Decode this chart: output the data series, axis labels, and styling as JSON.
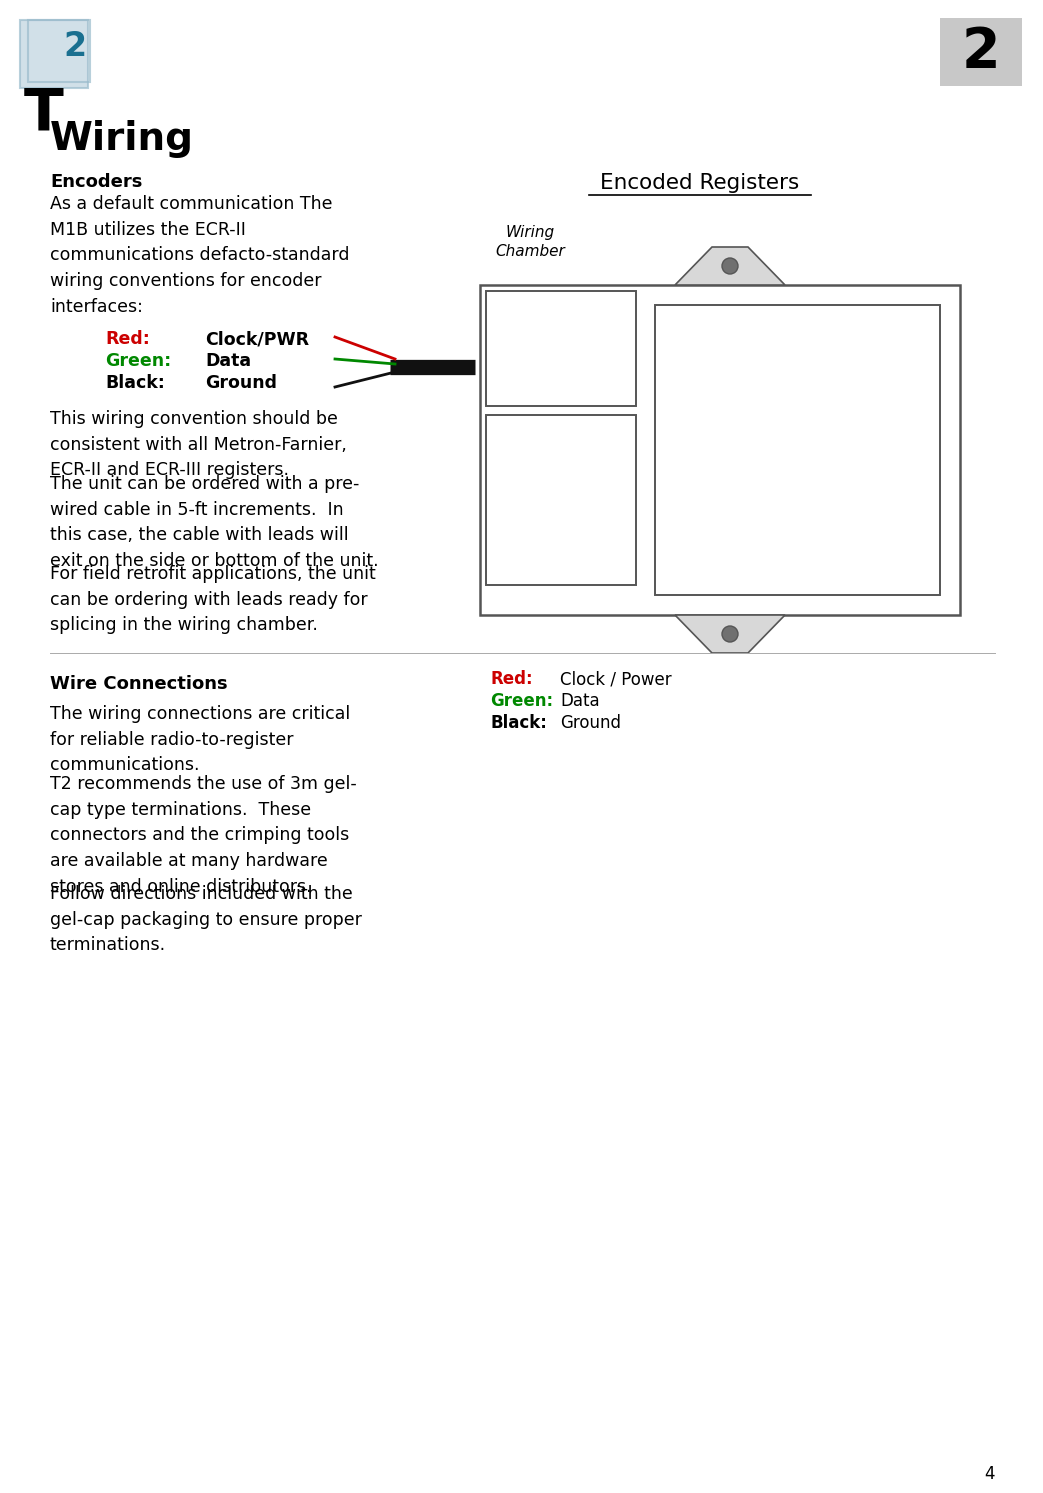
{
  "bg_color": "#ffffff",
  "page_number": "2",
  "page_number_bg": "#c8c8c8",
  "title": "Wiring",
  "section1_header": "Encoders",
  "section1_body1": "As a default communication The\nM1B utilizes the ECR-II\ncommunications defacto-standard\nwiring conventions for encoder\ninterfaces:",
  "wire_labels": [
    {
      "color": "#cc0000",
      "label": "Red:",
      "desc": "Clock/PWR"
    },
    {
      "color": "#008800",
      "label": "Green:",
      "desc": "Data"
    },
    {
      "color": "#000000",
      "label": "Black:",
      "desc": "Ground"
    }
  ],
  "section1_body2": "This wiring convention should be\nconsistent with all Metron-Farnier,\nECR-II and ECR-III registers.",
  "section1_body3": "The unit can be ordered with a pre-\nwired cable in 5-ft increments.  In\nthis case, the cable with leads will\nexit on the side or bottom of the unit.",
  "section1_body4": "For field retrofit applications, the unit\ncan be ordering with leads ready for\nsplicing in the wiring chamber.",
  "diagram_title": "Encoded Registers",
  "diagram_wiring_label": "Wiring\nChamber",
  "diagram_legend": [
    {
      "color": "#cc0000",
      "label": "Red:",
      "desc": "Clock / Power"
    },
    {
      "color": "#008800",
      "label": "Green:",
      "desc": "Data"
    },
    {
      "color": "#000000",
      "label": "Black:",
      "desc": "Ground"
    }
  ],
  "section2_header": "Wire Connections",
  "section2_body1": "The wiring connections are critical\nfor reliable radio-to-register\ncommunications.",
  "section2_body2": "T2 recommends the use of 3m gel-\ncap type terminations.  These\nconnectors and the crimping tools\nare available at many hardware\nstores and online distributors.",
  "section2_body3": "Follow directions included with the\ngel-cap packaging to ensure proper\nterminations.",
  "footer_number": "4",
  "logo_T_color": "#000000",
  "logo_2_color": "#1a7090",
  "logo_box_color": "#9bbccc"
}
